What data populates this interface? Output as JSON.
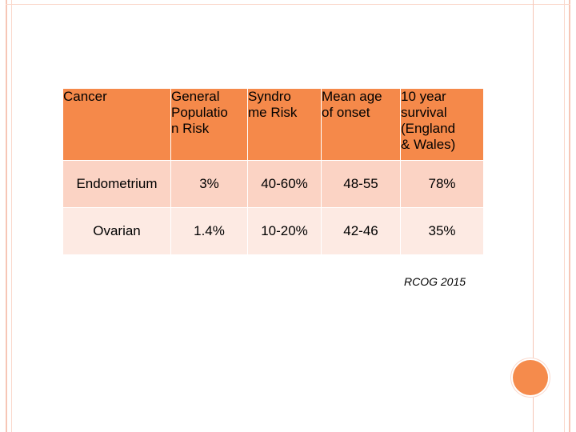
{
  "table": {
    "headers": [
      "Cancer",
      "General\nPopulatio\nn Risk",
      "Syndro\nme Risk",
      "Mean age\nof onset",
      "10 year\nsurvival\n(England\n& Wales)"
    ],
    "rows": [
      [
        "Endometrium",
        "3%",
        "40-60%",
        "48-55",
        "78%"
      ],
      [
        "Ovarian",
        "1.4%",
        "10-20%",
        "42-46",
        "35%"
      ]
    ]
  },
  "citation": "RCOG 2015",
  "colors": {
    "header_bg": "#f5894a",
    "row_dark": "#fbd3c4",
    "row_light": "#fdeae3",
    "accent_circle": "#f58b4c",
    "frame": "#f6c6b6"
  }
}
